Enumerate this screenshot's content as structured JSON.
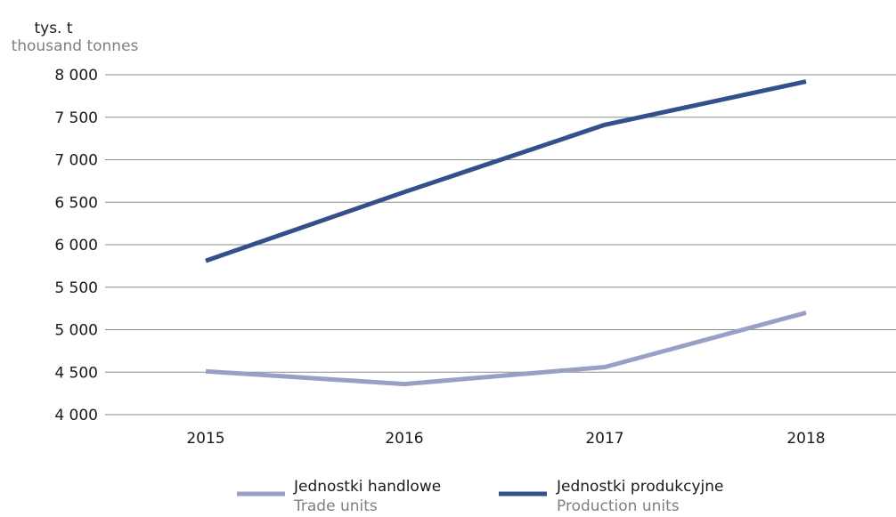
{
  "chart_data": {
    "type": "line",
    "unit_label_pl": "tys. t",
    "unit_label_en": "thousand tonnes",
    "categories": [
      "2015",
      "2016",
      "2017",
      "2018"
    ],
    "y_ticks": [
      "4 000",
      "4 500",
      "5 000",
      "5 500",
      "6 000",
      "6 500",
      "7 000",
      "7 500",
      "8 000"
    ],
    "ylim": [
      4000,
      8000
    ],
    "grid": true,
    "legend_position": "bottom",
    "series": [
      {
        "name": "Jednostki handlowe",
        "name_en": "Trade units",
        "values": [
          4510,
          4360,
          4560,
          5200
        ],
        "color": "#98a0c6"
      },
      {
        "name": "Jednostki produkcyjne",
        "name_en": "Production units",
        "values": [
          5810,
          6620,
          7410,
          7920
        ],
        "color": "#34508a"
      }
    ]
  },
  "colors": {
    "grid": "#8c8c8c",
    "text": "#1a1a1a",
    "subtext": "#7f7f7f"
  }
}
